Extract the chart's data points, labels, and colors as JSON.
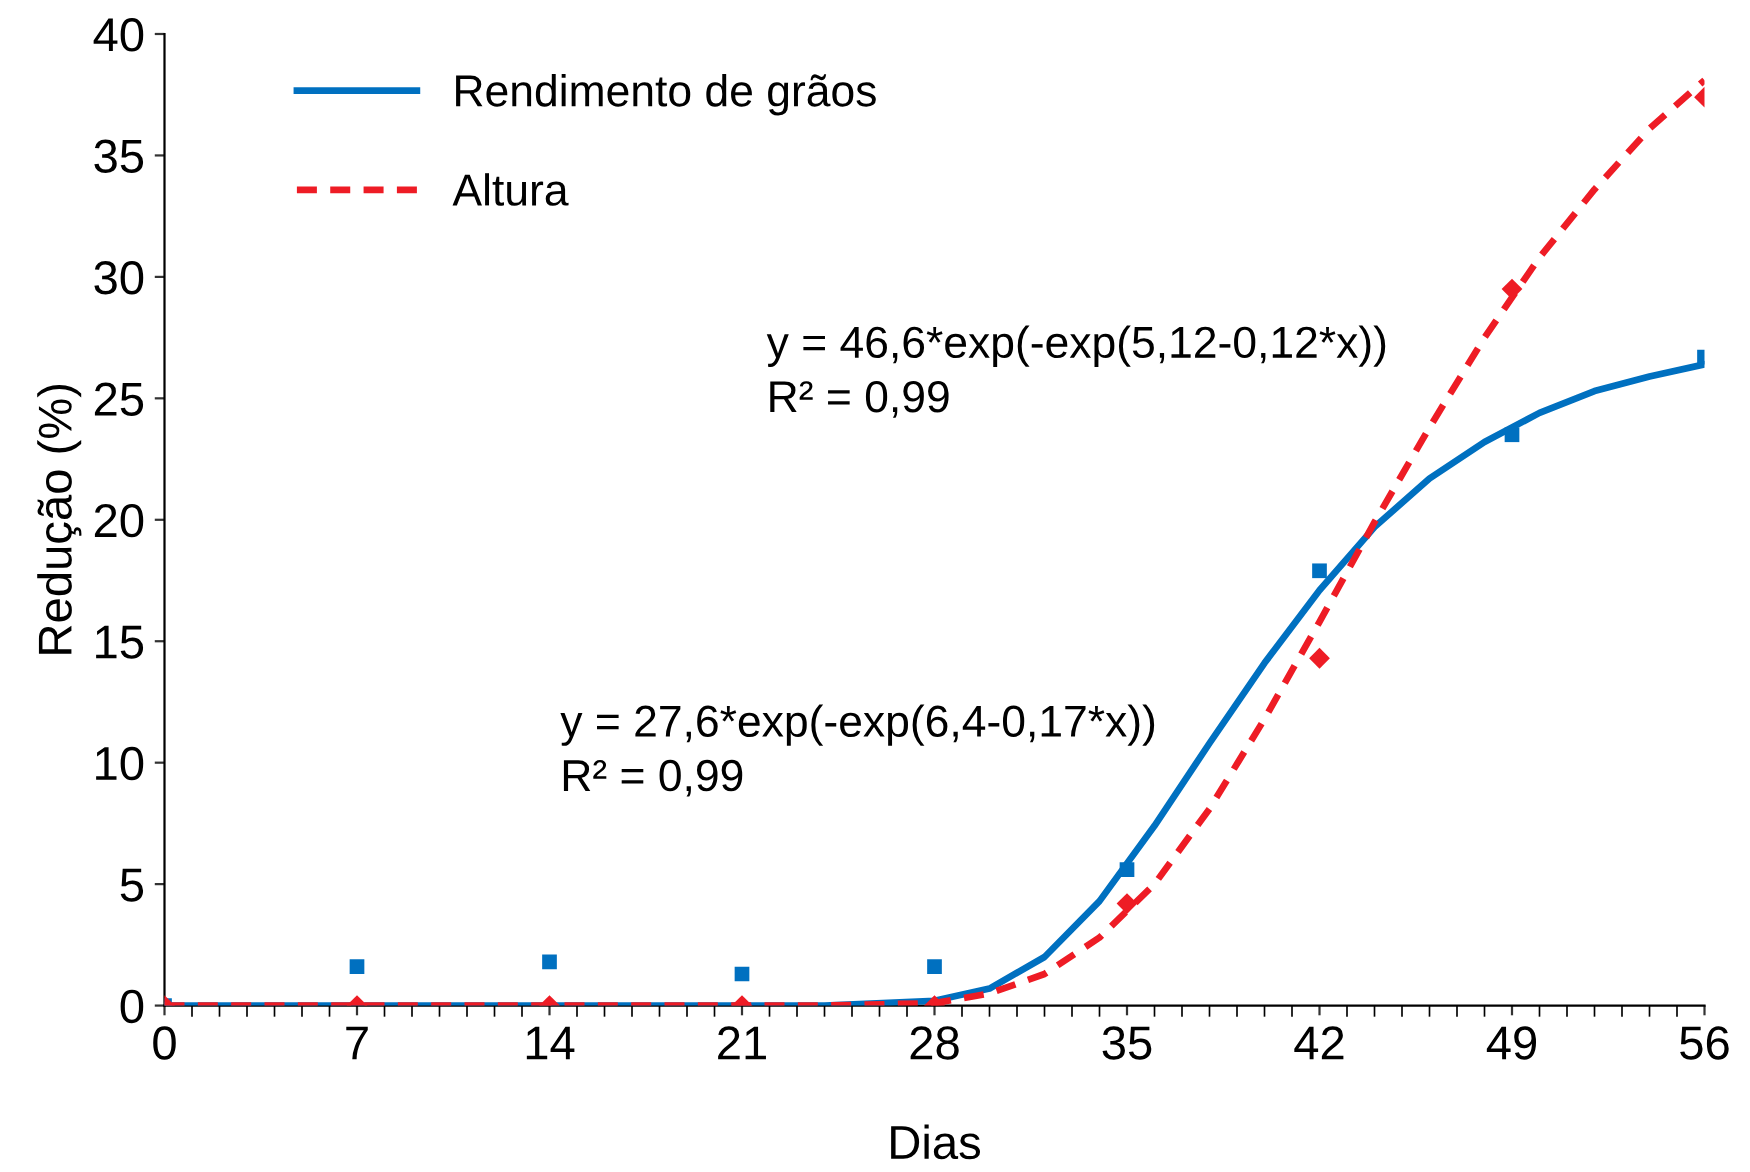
{
  "chart_data": {
    "type": "line",
    "xlabel": "Dias",
    "ylabel": "Redução (%)",
    "xlim": [
      0,
      56
    ],
    "xticks": [
      0,
      7,
      14,
      21,
      28,
      35,
      42,
      49,
      56
    ],
    "ylim": [
      0,
      40
    ],
    "yticks": [
      0,
      5,
      10,
      15,
      20,
      25,
      30,
      35,
      40
    ],
    "grid": false,
    "legend": "top left",
    "series": [
      {
        "type": "scatter",
        "marker": "square",
        "color": "#0070c0",
        "x": [
          0,
          7,
          14,
          21,
          28,
          35,
          42,
          49,
          56
        ],
        "values": [
          0,
          1.6,
          1.8,
          1.3,
          1.6,
          5.6,
          17.9,
          23.5,
          26.7
        ]
      },
      {
        "type": "scatter",
        "marker": "diamond",
        "color": "#ee1c25",
        "x": [
          0,
          7,
          14,
          21,
          28,
          35,
          42,
          49,
          56
        ],
        "values": [
          0,
          0,
          0,
          0,
          0,
          4.2,
          14.3,
          29.5,
          37.4
        ]
      },
      {
        "name": "Rendimento de grãos",
        "line_style": "solid",
        "color": "#0070c0",
        "x": [
          0,
          7,
          14,
          21,
          24,
          28,
          30,
          32,
          34,
          36,
          38,
          40,
          42,
          44,
          46,
          48,
          50,
          52,
          54,
          56
        ],
        "values": [
          0,
          0,
          0,
          0,
          0,
          0.2,
          0.7,
          2,
          4.3,
          7.4,
          10.8,
          14.1,
          17.1,
          19.7,
          21.7,
          23.2,
          24.4,
          25.3,
          25.9,
          26.4
        ]
      },
      {
        "name": "Altura",
        "line_style": "dashed",
        "color": "#ee1c25",
        "x": [
          0,
          7,
          14,
          21,
          24,
          28,
          30,
          32,
          34,
          36,
          38,
          40,
          42,
          44,
          46,
          48,
          50,
          52,
          54,
          56
        ],
        "values": [
          0,
          0,
          0,
          0,
          0,
          0.1,
          0.5,
          1.3,
          2.8,
          5,
          8.1,
          11.8,
          15.8,
          19.9,
          23.8,
          27.5,
          30.8,
          33.6,
          36.1,
          38.1
        ]
      }
    ],
    "annotations": [
      "y = 46,6*exp(-exp(5,12-0,12*x))\nR² = 0,99",
      "y = 27,6*exp(-exp(6,4-0,17*x))\nR² = 0,99"
    ]
  }
}
